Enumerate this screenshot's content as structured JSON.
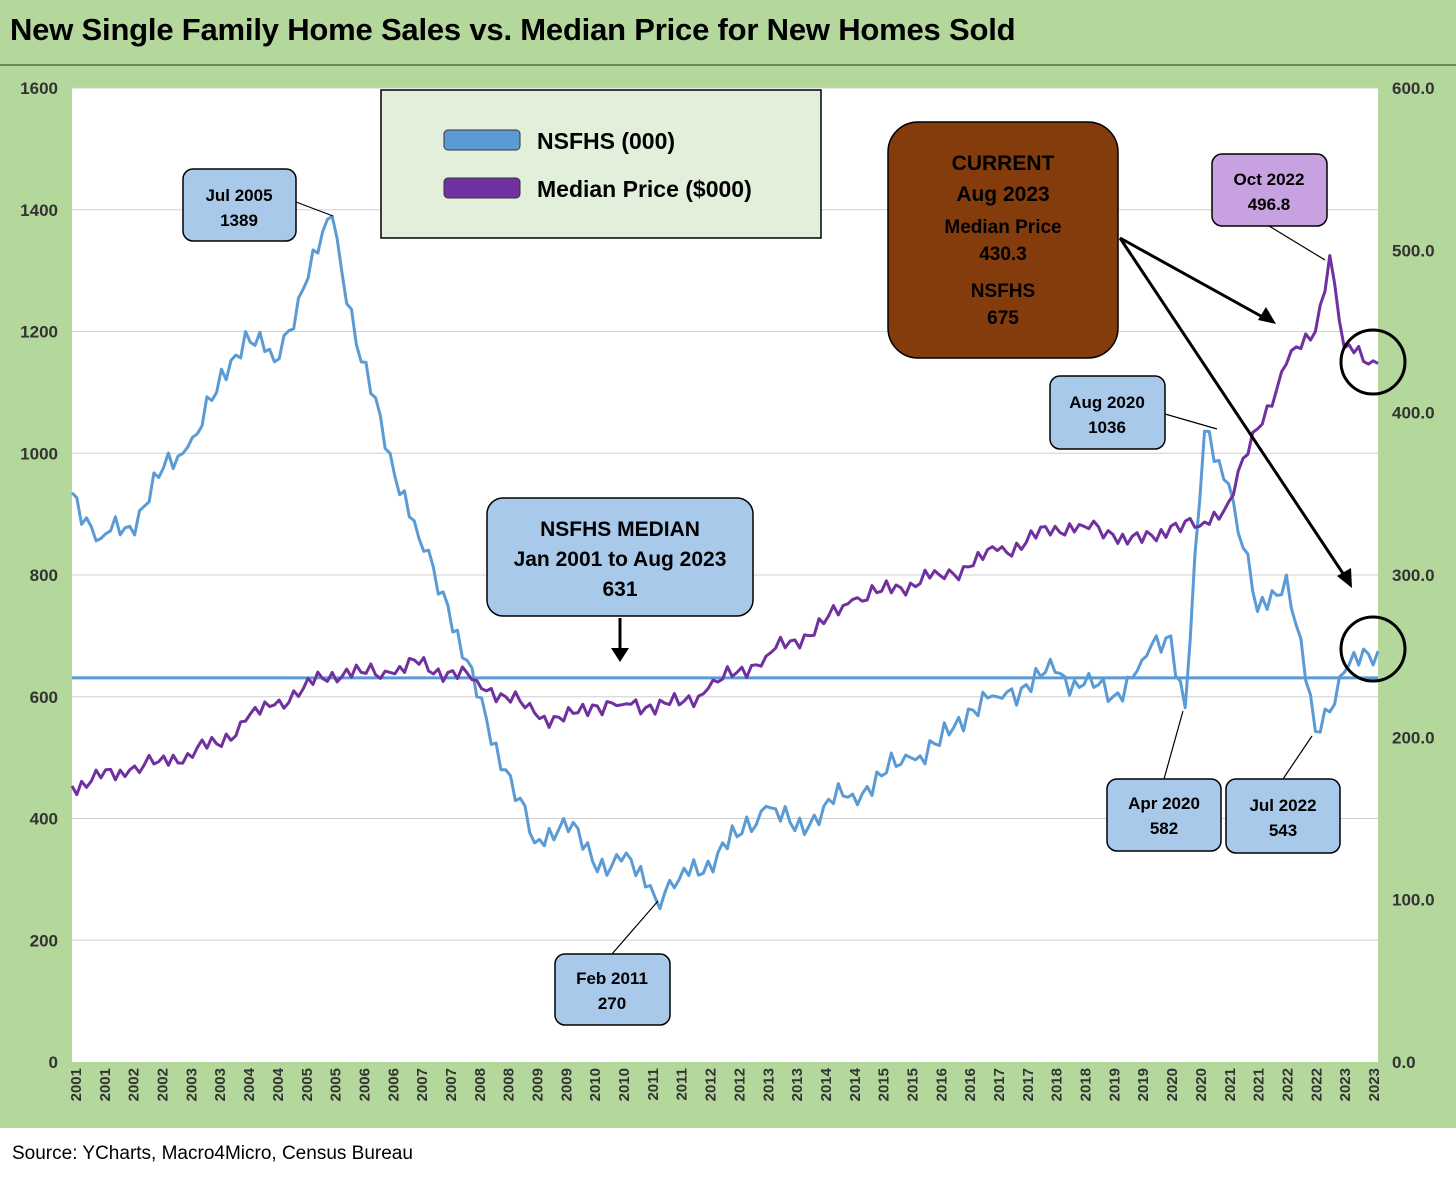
{
  "title": "New Single Family Home Sales vs. Median Price for New Homes Sold",
  "source": "Source: YCharts, Macro4Micro, Census Bureau",
  "colors": {
    "panel": "#b4d79b",
    "plot_bg": "#ffffff",
    "sales_line": "#5b9bd5",
    "price_line": "#7030a0",
    "callout_blue": "#a9c9ea",
    "callout_purple": "#c8a2e0",
    "callout_brown": "#843c0c",
    "legend_bg": "#e2efda"
  },
  "legend": {
    "items": [
      {
        "label": "NSFHS (000)",
        "color": "#5b9bd5"
      },
      {
        "label": "Median Price ($000)",
        "color": "#7030a0"
      }
    ]
  },
  "annotations": {
    "jul2005": [
      "Jul 2005",
      "1389"
    ],
    "feb2011": [
      "Feb 2011",
      "270"
    ],
    "median": [
      "NSFHS MEDIAN",
      "Jan 2001 to Aug 2023",
      "631"
    ],
    "current": [
      "CURRENT",
      "Aug 2023",
      "Median Price",
      "430.3",
      "NSFHS",
      "675"
    ],
    "oct2022": [
      "Oct 2022",
      "496.8"
    ],
    "aug2020": [
      "Aug 2020",
      "1036"
    ],
    "apr2020": [
      "Apr 2020",
      "582"
    ],
    "jul2022": [
      "Jul 2022",
      "543"
    ]
  },
  "chart_data": {
    "type": "line",
    "title": "New Single Family Home Sales vs. Median Price for New Homes Sold",
    "x_range": [
      "2001-01",
      "2023-08"
    ],
    "x_tick_labels": [
      "2001",
      "2001",
      "2002",
      "2002",
      "2003",
      "2003",
      "2004",
      "2004",
      "2005",
      "2005",
      "2006",
      "2006",
      "2007",
      "2007",
      "2008",
      "2008",
      "2009",
      "2009",
      "2010",
      "2010",
      "2011",
      "2011",
      "2012",
      "2012",
      "2013",
      "2013",
      "2014",
      "2014",
      "2015",
      "2015",
      "2016",
      "2016",
      "2017",
      "2017",
      "2018",
      "2018",
      "2019",
      "2019",
      "2020",
      "2020",
      "2021",
      "2021",
      "2022",
      "2022",
      "2023",
      "2023"
    ],
    "y_left": {
      "label": "NSFHS (000)",
      "range": [
        0,
        1600
      ],
      "ticks": [
        "0",
        "200",
        "400",
        "600",
        "800",
        "1000",
        "1200",
        "1400",
        "1600"
      ]
    },
    "y_right": {
      "label": "Median Price ($000)",
      "range": [
        0,
        600
      ],
      "ticks": [
        "0.0",
        "100.0",
        "200.0",
        "300.0",
        "400.0",
        "500.0",
        "600.0"
      ]
    },
    "grid": "horizontal",
    "reference_line": {
      "name": "NSFHS MEDIAN",
      "value": 631,
      "axis": "left"
    },
    "series": [
      {
        "name": "NSFHS (000)",
        "axis": "left",
        "x": [
          "2001-01",
          "2001-07",
          "2002-01",
          "2002-07",
          "2003-01",
          "2003-07",
          "2004-01",
          "2004-07",
          "2005-01",
          "2005-07",
          "2006-01",
          "2006-07",
          "2007-01",
          "2007-07",
          "2008-01",
          "2008-07",
          "2009-01",
          "2009-07",
          "2010-01",
          "2010-07",
          "2011-01",
          "2011-02",
          "2011-07",
          "2012-01",
          "2012-07",
          "2013-01",
          "2013-07",
          "2014-01",
          "2014-07",
          "2015-01",
          "2015-07",
          "2016-01",
          "2016-07",
          "2017-01",
          "2017-07",
          "2018-01",
          "2018-07",
          "2019-01",
          "2019-07",
          "2020-01",
          "2020-04",
          "2020-08",
          "2021-01",
          "2021-07",
          "2022-01",
          "2022-07",
          "2023-01",
          "2023-08"
        ],
        "values": [
          935,
          860,
          880,
          960,
          1010,
          1100,
          1200,
          1150,
          1270,
          1389,
          1150,
          1000,
          860,
          750,
          600,
          480,
          360,
          400,
          330,
          330,
          290,
          270,
          300,
          330,
          370,
          420,
          380,
          420,
          440,
          470,
          500,
          520,
          580,
          600,
          620,
          640,
          620,
          600,
          660,
          700,
          582,
          1036,
          950,
          740,
          800,
          543,
          640,
          675
        ]
      },
      {
        "name": "Median Price ($000)",
        "axis": "right",
        "x": [
          "2001-01",
          "2001-07",
          "2002-01",
          "2002-07",
          "2003-01",
          "2003-07",
          "2004-01",
          "2004-07",
          "2005-01",
          "2005-07",
          "2006-01",
          "2006-07",
          "2007-01",
          "2007-07",
          "2008-01",
          "2008-07",
          "2009-01",
          "2009-07",
          "2010-01",
          "2010-07",
          "2011-01",
          "2011-07",
          "2012-01",
          "2012-07",
          "2013-01",
          "2013-07",
          "2014-01",
          "2014-07",
          "2015-01",
          "2015-07",
          "2016-01",
          "2016-07",
          "2017-01",
          "2017-07",
          "2018-01",
          "2018-07",
          "2019-01",
          "2019-07",
          "2020-01",
          "2020-07",
          "2021-01",
          "2021-07",
          "2022-01",
          "2022-07",
          "2022-10",
          "2023-01",
          "2023-08"
        ],
        "values": [
          170,
          175,
          180,
          185,
          190,
          196,
          210,
          220,
          230,
          240,
          240,
          240,
          245,
          240,
          235,
          225,
          215,
          210,
          220,
          220,
          220,
          220,
          230,
          240,
          250,
          260,
          270,
          285,
          290,
          295,
          300,
          305,
          315,
          320,
          330,
          330,
          325,
          320,
          330,
          330,
          345,
          390,
          430,
          450,
          496.8,
          440,
          430.3
        ]
      }
    ]
  }
}
